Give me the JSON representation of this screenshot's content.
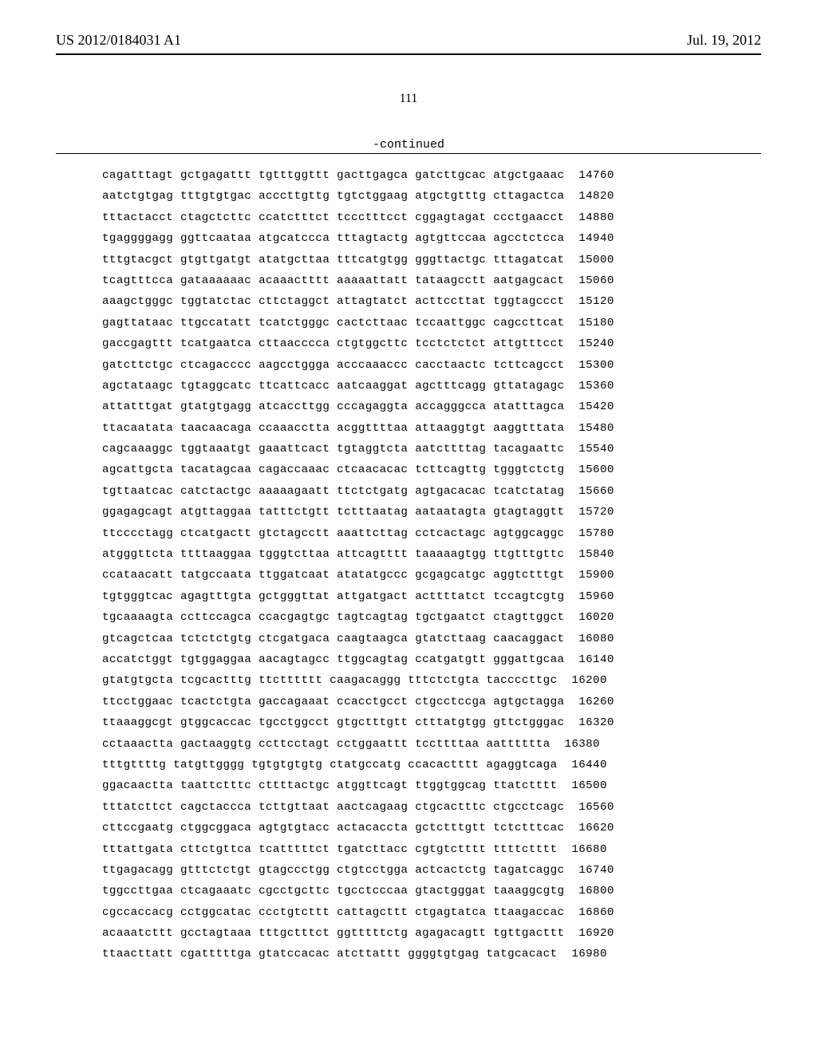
{
  "header": {
    "pub_number": "US 2012/0184031 A1",
    "pub_date": "Jul. 19, 2012"
  },
  "page_number": "111",
  "continued_label": "-continued",
  "sequence": {
    "font_family": "Courier New",
    "font_size_pt": 10,
    "text_color": "#000000",
    "background_color": "#ffffff",
    "group_len": 10,
    "groups_per_row": 6,
    "rows": [
      {
        "groups": [
          "cagatttagt",
          "gctgagattt",
          "tgtttggttt",
          "gacttgagca",
          "gatcttgcac",
          "atgctgaaac"
        ],
        "pos": 14760
      },
      {
        "groups": [
          "aatctgtgag",
          "tttgtgtgac",
          "acccttgttg",
          "tgtctggaag",
          "atgctgtttg",
          "cttagactca"
        ],
        "pos": 14820
      },
      {
        "groups": [
          "tttactacct",
          "ctagctcttc",
          "ccatctttct",
          "tccctttcct",
          "cggagtagat",
          "ccctgaacct"
        ],
        "pos": 14880
      },
      {
        "groups": [
          "tgaggggagg",
          "ggttcaataa",
          "atgcatccca",
          "tttagtactg",
          "agtgttccaa",
          "agcctctcca"
        ],
        "pos": 14940
      },
      {
        "groups": [
          "tttgtacgct",
          "gtgttgatgt",
          "atatgcttaa",
          "tttcatgtgg",
          "gggttactgc",
          "tttagatcat"
        ],
        "pos": 15000
      },
      {
        "groups": [
          "tcagtttcca",
          "gataaaaaac",
          "acaaactttt",
          "aaaaattatt",
          "tataagcctt",
          "aatgagcact"
        ],
        "pos": 15060
      },
      {
        "groups": [
          "aaagctgggc",
          "tggtatctac",
          "cttctaggct",
          "attagtatct",
          "acttccttat",
          "tggtagccct"
        ],
        "pos": 15120
      },
      {
        "groups": [
          "gagttataac",
          "ttgccatatt",
          "tcatctgggc",
          "cactcttaac",
          "tccaattggc",
          "cagccttcat"
        ],
        "pos": 15180
      },
      {
        "groups": [
          "gaccgagttt",
          "tcatgaatca",
          "cttaacccca",
          "ctgtggcttc",
          "tcctctctct",
          "attgtttcct"
        ],
        "pos": 15240
      },
      {
        "groups": [
          "gatcttctgc",
          "ctcagacccc",
          "aagcctggga",
          "acccaaaccc",
          "cacctaactc",
          "tcttcagcct"
        ],
        "pos": 15300
      },
      {
        "groups": [
          "agctataagc",
          "tgtaggcatc",
          "ttcattcacc",
          "aatcaaggat",
          "agctttcagg",
          "gttatagagc"
        ],
        "pos": 15360
      },
      {
        "groups": [
          "attatttgat",
          "gtatgtgagg",
          "atcaccttgg",
          "cccagaggta",
          "accagggcca",
          "atatttagca"
        ],
        "pos": 15420
      },
      {
        "groups": [
          "ttacaatata",
          "taacaacaga",
          "ccaaacctta",
          "acggttttaa",
          "attaaggtgt",
          "aaggtttata"
        ],
        "pos": 15480
      },
      {
        "groups": [
          "cagcaaaggc",
          "tggtaaatgt",
          "gaaattcact",
          "tgtaggtcta",
          "aatcttttag",
          "tacagaattc"
        ],
        "pos": 15540
      },
      {
        "groups": [
          "agcattgcta",
          "tacatagcaa",
          "cagaccaaac",
          "ctcaacacac",
          "tcttcagttg",
          "tgggtctctg"
        ],
        "pos": 15600
      },
      {
        "groups": [
          "tgttaatcac",
          "catctactgc",
          "aaaaagaatt",
          "ttctctgatg",
          "agtgacacac",
          "tcatctatag"
        ],
        "pos": 15660
      },
      {
        "groups": [
          "ggagagcagt",
          "atgttaggaa",
          "tatttctgtt",
          "tctttaatag",
          "aataatagta",
          "gtagtaggtt"
        ],
        "pos": 15720
      },
      {
        "groups": [
          "ttcccctagg",
          "ctcatgactt",
          "gtctagcctt",
          "aaattcttag",
          "cctcactagc",
          "agtggcaggc"
        ],
        "pos": 15780
      },
      {
        "groups": [
          "atgggttcta",
          "ttttaaggaa",
          "tgggtcttaa",
          "attcagtttt",
          "taaaaagtgg",
          "ttgtttgttc"
        ],
        "pos": 15840
      },
      {
        "groups": [
          "ccataacatt",
          "tatgccaata",
          "ttggatcaat",
          "atatatgccc",
          "gcgagcatgc",
          "aggtctttgt"
        ],
        "pos": 15900
      },
      {
        "groups": [
          "tgtgggtcac",
          "agagtttgta",
          "gctgggttat",
          "attgatgact",
          "acttttatct",
          "tccagtcgtg"
        ],
        "pos": 15960
      },
      {
        "groups": [
          "tgcaaaagta",
          "ccttccagca",
          "ccacgagtgc",
          "tagtcagtag",
          "tgctgaatct",
          "ctagttggct"
        ],
        "pos": 16020
      },
      {
        "groups": [
          "gtcagctcaa",
          "tctctctgtg",
          "ctcgatgaca",
          "caagtaagca",
          "gtatcttaag",
          "caacaggact"
        ],
        "pos": 16080
      },
      {
        "groups": [
          "accatctggt",
          "tgtggaggaa",
          "aacagtagcc",
          "ttggcagtag",
          "ccatgatgtt",
          "gggattgcaa"
        ],
        "pos": 16140
      },
      {
        "groups": [
          "gtatgtgcta",
          "tcgcactttg",
          "ttctttttt",
          "caagacaggg",
          "tttctctgta",
          "taccccttgc"
        ],
        "pos": 16200
      },
      {
        "groups": [
          "ttcctggaac",
          "tcactctgta",
          "gaccagaaat",
          "ccacctgcct",
          "ctgcctccga",
          "agtgctagga"
        ],
        "pos": 16260
      },
      {
        "groups": [
          "ttaaaggcgt",
          "gtggcaccac",
          "tgcctggcct",
          "gtgctttgtt",
          "ctttatgtgg",
          "gttctgggac"
        ],
        "pos": 16320
      },
      {
        "groups": [
          "cctaaactta",
          "gactaaggtg",
          "ccttcctagt",
          "cctggaattt",
          "tccttttaa",
          "aatttttta"
        ],
        "pos": 16380
      },
      {
        "groups": [
          "tttgttttg",
          "tatgttgggg",
          "tgtgtgtgtg",
          "ctatgccatg",
          "ccacactttt",
          "agaggtcaga"
        ],
        "pos": 16440
      },
      {
        "groups": [
          "ggacaactta",
          "taattctttc",
          "cttttactgc",
          "atggttcagt",
          "ttggtggcag",
          "ttatctttt"
        ],
        "pos": 16500
      },
      {
        "groups": [
          "tttatcttct",
          "cagctaccca",
          "tcttgttaat",
          "aactcagaag",
          "ctgcactttc",
          "ctgcctcagc"
        ],
        "pos": 16560
      },
      {
        "groups": [
          "cttccgaatg",
          "ctggcggaca",
          "agtgtgtacc",
          "actacaccta",
          "gctctttgtt",
          "tctctttcac"
        ],
        "pos": 16620
      },
      {
        "groups": [
          "tttattgata",
          "cttctgttca",
          "tcatttttct",
          "tgatcttacc",
          "cgtgtctttt",
          "ttttctttt"
        ],
        "pos": 16680
      },
      {
        "groups": [
          "ttgagacagg",
          "gtttctctgt",
          "gtagccctgg",
          "ctgtcctgga",
          "actcactctg",
          "tagatcaggc"
        ],
        "pos": 16740
      },
      {
        "groups": [
          "tggccttgaa",
          "ctcagaaatc",
          "cgcctgcttc",
          "tgcctcccaa",
          "gtactgggat",
          "taaaggcgtg"
        ],
        "pos": 16800
      },
      {
        "groups": [
          "cgccaccacg",
          "cctggcatac",
          "ccctgtcttt",
          "cattagcttt",
          "ctgagtatca",
          "ttaagaccac"
        ],
        "pos": 16860
      },
      {
        "groups": [
          "acaaatcttt",
          "gcctagtaaa",
          "tttgctttct",
          "ggtttttctg",
          "agagacagtt",
          "tgttgacttt"
        ],
        "pos": 16920
      },
      {
        "groups": [
          "ttaacttatt",
          "cgatttttga",
          "gtatccacac",
          "atcttattt",
          "ggggtgtgag",
          "tatgcacact"
        ],
        "pos": 16980
      }
    ]
  }
}
